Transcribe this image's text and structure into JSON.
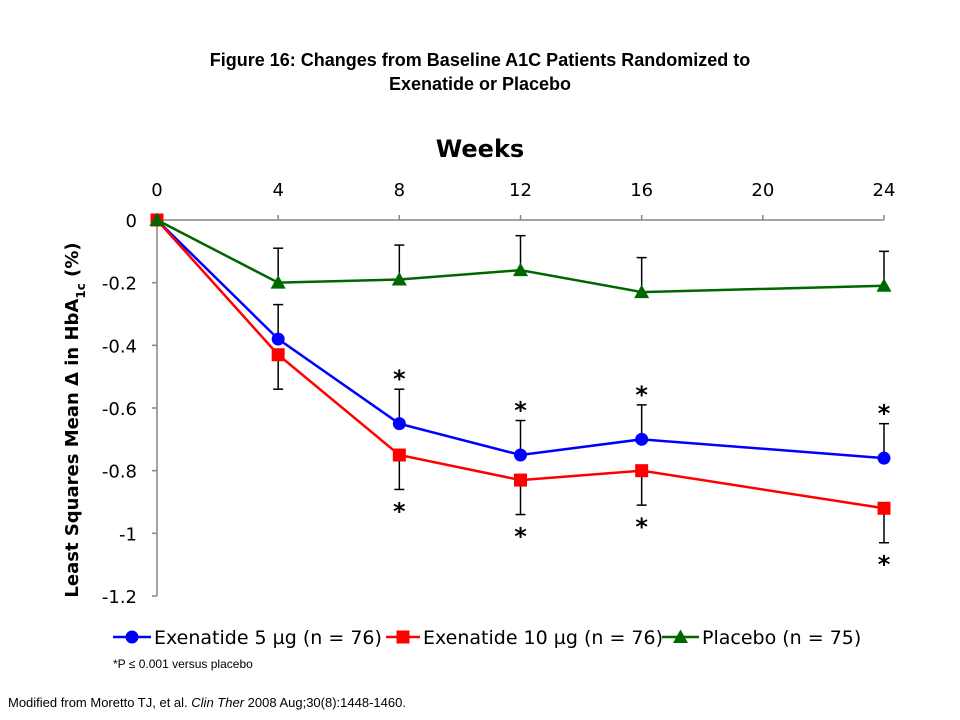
{
  "title": {
    "line1": "Figure 16: Changes from Baseline A1C Patients Randomized to",
    "line2": "Exenatide or Placebo"
  },
  "footnote": "*P ≤ 0.001 versus placebo",
  "source": {
    "prefix": "Modified from Moretto TJ, et al. ",
    "journal": "Clin Ther",
    "suffix": " 2008 Aug;30(8):1448-1460."
  },
  "chart_data": {
    "type": "line",
    "xlabel": "Weeks",
    "ylabel_main": "Least Squares Mean Δ in HbA",
    "ylabel_sub": "1c",
    "ylabel_end": " (%)",
    "x_ticks": [
      0,
      4,
      8,
      12,
      16,
      20,
      24
    ],
    "y_ticks": [
      0,
      -0.2,
      -0.4,
      -0.6,
      -0.8,
      -1,
      -1.2
    ],
    "xlim": [
      0,
      24
    ],
    "ylim": [
      -1.2,
      0
    ],
    "x_axis_position": "top",
    "grid": false,
    "legend_position": "bottom",
    "series": [
      {
        "name": "Exenatide 5 µg (n = 76)",
        "color": "#0000ff",
        "marker": "circle",
        "x": [
          0,
          4,
          8,
          12,
          16,
          24
        ],
        "y": [
          0,
          -0.38,
          -0.65,
          -0.75,
          -0.7,
          -0.76
        ],
        "error": [
          0,
          0.11,
          0.11,
          0.11,
          0.11,
          0.11
        ],
        "error_direction": "up",
        "significant": [
          false,
          false,
          true,
          true,
          true,
          true
        ],
        "asterisk_position": "above"
      },
      {
        "name": "Exenatide 10 µg (n = 76)",
        "color": "#ff0000",
        "marker": "square",
        "x": [
          0,
          4,
          8,
          12,
          16,
          24
        ],
        "y": [
          0,
          -0.43,
          -0.75,
          -0.83,
          -0.8,
          -0.92
        ],
        "error": [
          0,
          0.11,
          0.11,
          0.11,
          0.11,
          0.11
        ],
        "error_direction": "down",
        "significant": [
          false,
          false,
          true,
          true,
          true,
          true
        ],
        "asterisk_position": "below"
      },
      {
        "name": "Placebo (n = 75)",
        "color": "#006600",
        "marker": "triangle",
        "x": [
          0,
          4,
          8,
          12,
          16,
          24
        ],
        "y": [
          0,
          -0.2,
          -0.19,
          -0.16,
          -0.23,
          -0.21
        ],
        "error": [
          0,
          0.11,
          0.11,
          0.11,
          0.11,
          0.11
        ],
        "error_direction": "up",
        "significant": [
          false,
          false,
          false,
          false,
          false,
          false
        ],
        "asterisk_position": "none"
      }
    ],
    "asterisk_symbol": "*"
  }
}
